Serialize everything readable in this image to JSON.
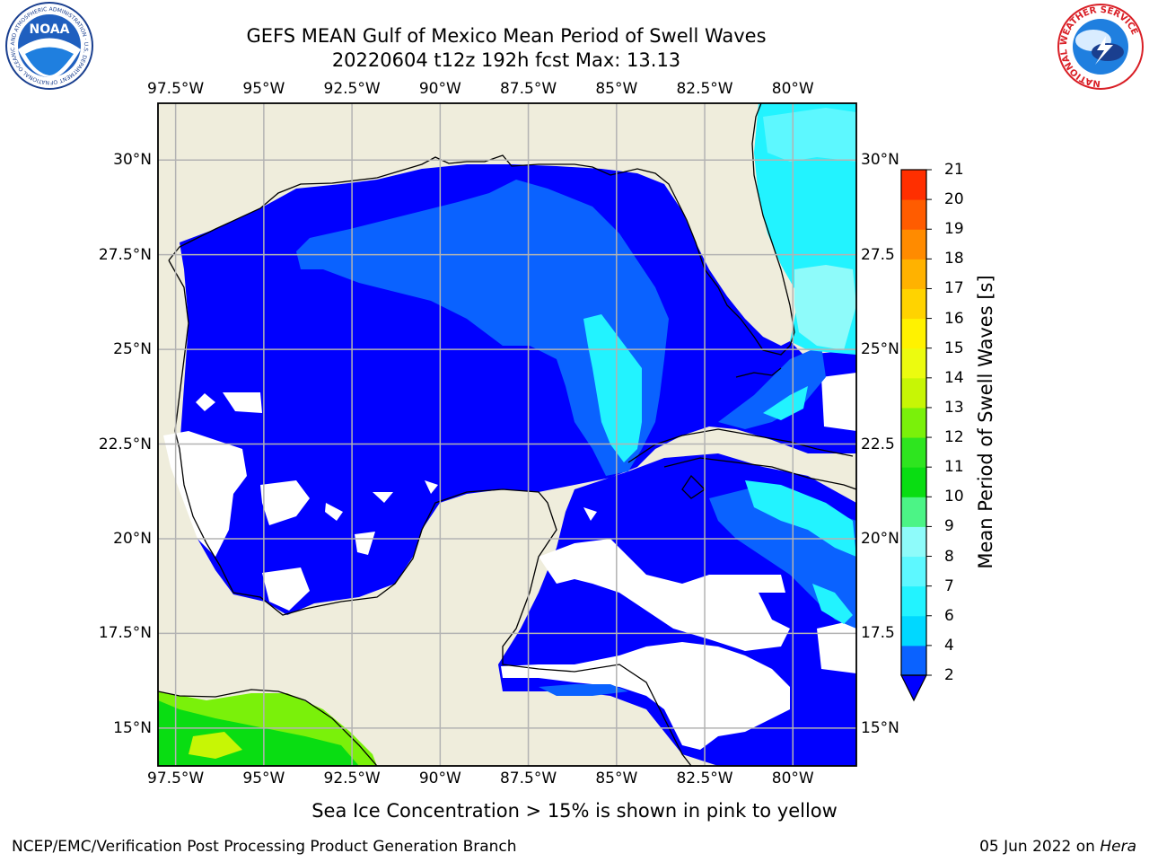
{
  "header": {
    "title_line1": "GEFS MEAN Gulf of Mexico Mean Period of Swell Waves",
    "title_line2": "20220604 t12z 192h fcst   Max: 13.13"
  },
  "map": {
    "extent": {
      "lon_min": -98.0,
      "lon_max": -78.2,
      "lat_min": 14.0,
      "lat_max": 31.5
    },
    "lon_ticks": [
      "97.5°W",
      "95°W",
      "92.5°W",
      "90°W",
      "87.5°W",
      "85°W",
      "82.5°W",
      "80°W"
    ],
    "lat_ticks_left": [
      "30°N",
      "27.5°N",
      "25°N",
      "22.5°N",
      "20°N",
      "17.5°N",
      "15°N"
    ],
    "lat_ticks_right": [
      "30°N",
      "27.5",
      "25°N",
      "22.5",
      "20°N",
      "17.5",
      "15°N"
    ],
    "grid": true,
    "colors": {
      "land": "#efeddc",
      "ocean_no_swell": "#ffffff",
      "gridline": "#b3b3b3",
      "coast": "#000000"
    }
  },
  "colorbar": {
    "label": "Mean Period of Swell Waves [s]",
    "ticks": [
      "2",
      "4",
      "6",
      "7",
      "8",
      "9",
      "10",
      "11",
      "12",
      "13",
      "14",
      "15",
      "16",
      "17",
      "18",
      "19",
      "20",
      "21"
    ],
    "levels": [
      2,
      4,
      6,
      7,
      8,
      9,
      10,
      11,
      12,
      13,
      14,
      15,
      16,
      17,
      18,
      19,
      20,
      21
    ],
    "colors": [
      "#0a62ff",
      "#00d8ff",
      "#22f3ff",
      "#5df8ff",
      "#8efbfa",
      "#4cf486",
      "#09dd12",
      "#2ee51f",
      "#7af10a",
      "#c7f605",
      "#ecfb0f",
      "#fff200",
      "#ffd300",
      "#ffb200",
      "#ff8b00",
      "#ff5c00",
      "#ff2f00"
    ],
    "extend_below_color": "#0000ff"
  },
  "legend_logos": {
    "noaa_text": "NOAA",
    "noaa_ring_text": "NATIONAL OCEANIC AND ATMOSPHERIC ADMINISTRATION · U.S. DEPARTMENT OF COMMERCE",
    "nws_ring_text": "NATIONAL WEATHER SERVICE"
  },
  "notes": {
    "ice": "Sea Ice Concentration > 15% is shown in pink to yellow"
  },
  "footer": {
    "left": "NCEP/EMC/Verification Post Processing Product Generation Branch",
    "date_prefix": "05 Jun 2022 on ",
    "host": "Hera"
  }
}
